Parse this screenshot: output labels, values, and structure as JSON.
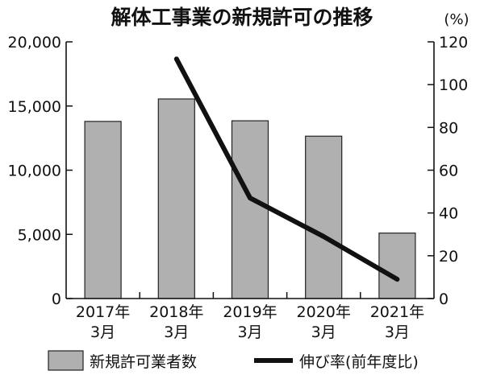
{
  "chart_data": {
    "type": "bar",
    "title": "解体工事業の新規許可の推移",
    "categories": [
      [
        "2017年",
        "3月"
      ],
      [
        "2018年",
        "3月"
      ],
      [
        "2019年",
        "3月"
      ],
      [
        "2020年",
        "3月"
      ],
      [
        "2021年",
        "3月"
      ]
    ],
    "series": [
      {
        "name": "新規許可業者数",
        "type": "bar",
        "axis": "left",
        "color": "#b0b0b0",
        "values": [
          13800,
          15550,
          13850,
          12650,
          5100
        ]
      },
      {
        "name": "伸び率(前年度比)",
        "type": "line",
        "axis": "right",
        "color": "#111111",
        "values": [
          null,
          112,
          47,
          29,
          9
        ]
      }
    ],
    "y_left": {
      "ylim": [
        0,
        20000
      ],
      "ticks": [
        "0",
        "5,000",
        "10,000",
        "15,000",
        "20,000"
      ],
      "tick_values": [
        0,
        5000,
        10000,
        15000,
        20000
      ]
    },
    "y_right": {
      "unit": "(%)",
      "ylim": [
        0,
        120
      ],
      "ticks": [
        "0",
        "20",
        "40",
        "60",
        "80",
        "100",
        "120"
      ],
      "tick_values": [
        0,
        20,
        40,
        60,
        80,
        100,
        120
      ]
    },
    "grid": false,
    "legend_position": "bottom"
  }
}
